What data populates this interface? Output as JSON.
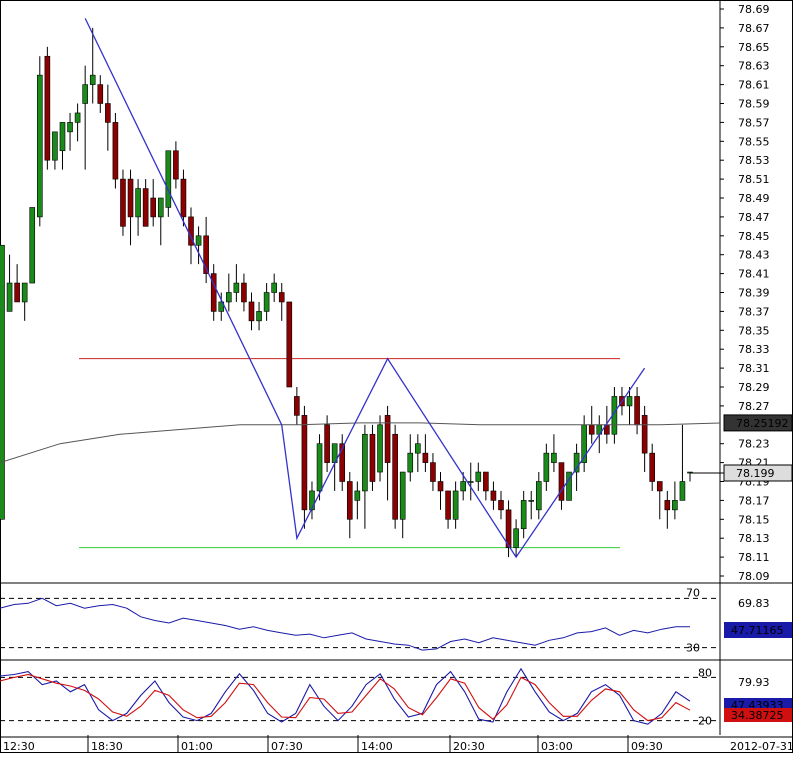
{
  "chart_data": [
    {
      "type": "candlestick",
      "panel": "price",
      "y_ticks": [
        "78.69",
        "78.67",
        "78.65",
        "78.63",
        "78.61",
        "78.59",
        "78.57",
        "78.55",
        "78.53",
        "78.51",
        "78.49",
        "78.47",
        "78.45",
        "78.43",
        "78.41",
        "78.39",
        "78.37",
        "78.35",
        "78.33",
        "78.31",
        "78.29",
        "78.27",
        "78.23",
        "78.21",
        "78.19",
        "78.17",
        "78.15",
        "78.13",
        "78.11",
        "78.09"
      ],
      "ylim": [
        78.08,
        78.7
      ],
      "up_color": "#1a8a1a",
      "down_color": "#8b0000",
      "candles": [
        {
          "o": 78.15,
          "h": 78.44,
          "l": 78.15,
          "c": 78.44
        },
        {
          "o": 78.37,
          "h": 78.43,
          "l": 78.37,
          "c": 78.4
        },
        {
          "o": 78.4,
          "h": 78.42,
          "l": 78.38,
          "c": 78.38
        },
        {
          "o": 78.38,
          "h": 78.4,
          "l": 78.36,
          "c": 78.4
        },
        {
          "o": 78.4,
          "h": 78.48,
          "l": 78.4,
          "c": 78.48
        },
        {
          "o": 78.47,
          "h": 78.64,
          "l": 78.46,
          "c": 78.62
        },
        {
          "o": 78.64,
          "h": 78.65,
          "l": 78.52,
          "c": 78.53
        },
        {
          "o": 78.53,
          "h": 78.56,
          "l": 78.52,
          "c": 78.56
        },
        {
          "o": 78.54,
          "h": 78.57,
          "l": 78.52,
          "c": 78.57
        },
        {
          "o": 78.56,
          "h": 78.58,
          "l": 78.54,
          "c": 78.57
        },
        {
          "o": 78.57,
          "h": 78.59,
          "l": 78.55,
          "c": 78.58
        },
        {
          "o": 78.59,
          "h": 78.63,
          "l": 78.52,
          "c": 78.61
        },
        {
          "o": 78.61,
          "h": 78.67,
          "l": 78.59,
          "c": 78.62
        },
        {
          "o": 78.61,
          "h": 78.62,
          "l": 78.58,
          "c": 78.59
        },
        {
          "o": 78.59,
          "h": 78.61,
          "l": 78.54,
          "c": 78.57
        },
        {
          "o": 78.57,
          "h": 78.58,
          "l": 78.5,
          "c": 78.51
        },
        {
          "o": 78.51,
          "h": 78.52,
          "l": 78.45,
          "c": 78.46
        },
        {
          "o": 78.51,
          "h": 78.52,
          "l": 78.44,
          "c": 78.47
        },
        {
          "o": 78.47,
          "h": 78.51,
          "l": 78.45,
          "c": 78.5
        },
        {
          "o": 78.5,
          "h": 78.51,
          "l": 78.46,
          "c": 78.46
        },
        {
          "o": 78.49,
          "h": 78.51,
          "l": 78.46,
          "c": 78.47
        },
        {
          "o": 78.47,
          "h": 78.49,
          "l": 78.44,
          "c": 78.49
        },
        {
          "o": 78.48,
          "h": 78.54,
          "l": 78.47,
          "c": 78.54
        },
        {
          "o": 78.54,
          "h": 78.55,
          "l": 78.5,
          "c": 78.51
        },
        {
          "o": 78.51,
          "h": 78.52,
          "l": 78.46,
          "c": 78.47
        },
        {
          "o": 78.47,
          "h": 78.48,
          "l": 78.42,
          "c": 78.44
        },
        {
          "o": 78.44,
          "h": 78.46,
          "l": 78.42,
          "c": 78.45
        },
        {
          "o": 78.45,
          "h": 78.47,
          "l": 78.4,
          "c": 78.41
        },
        {
          "o": 78.41,
          "h": 78.42,
          "l": 78.36,
          "c": 78.37
        },
        {
          "o": 78.37,
          "h": 78.39,
          "l": 78.36,
          "c": 78.38
        },
        {
          "o": 78.38,
          "h": 78.41,
          "l": 78.37,
          "c": 78.39
        },
        {
          "o": 78.39,
          "h": 78.42,
          "l": 78.38,
          "c": 78.4
        },
        {
          "o": 78.4,
          "h": 78.41,
          "l": 78.37,
          "c": 78.38
        },
        {
          "o": 78.38,
          "h": 78.39,
          "l": 78.35,
          "c": 78.36
        },
        {
          "o": 78.36,
          "h": 78.38,
          "l": 78.35,
          "c": 78.37
        },
        {
          "o": 78.37,
          "h": 78.4,
          "l": 78.36,
          "c": 78.39
        },
        {
          "o": 78.39,
          "h": 78.41,
          "l": 78.38,
          "c": 78.4
        },
        {
          "o": 78.39,
          "h": 78.4,
          "l": 78.36,
          "c": 78.38
        },
        {
          "o": 78.38,
          "h": 78.38,
          "l": 78.29,
          "c": 78.29
        },
        {
          "o": 78.28,
          "h": 78.29,
          "l": 78.25,
          "c": 78.26
        },
        {
          "o": 78.26,
          "h": 78.27,
          "l": 78.14,
          "c": 78.16
        },
        {
          "o": 78.16,
          "h": 78.19,
          "l": 78.15,
          "c": 78.18
        },
        {
          "o": 78.18,
          "h": 78.24,
          "l": 78.17,
          "c": 78.23
        },
        {
          "o": 78.25,
          "h": 78.26,
          "l": 78.2,
          "c": 78.21
        },
        {
          "o": 78.21,
          "h": 78.23,
          "l": 78.18,
          "c": 78.23
        },
        {
          "o": 78.23,
          "h": 78.24,
          "l": 78.18,
          "c": 78.19
        },
        {
          "o": 78.19,
          "h": 78.2,
          "l": 78.13,
          "c": 78.15
        },
        {
          "o": 78.17,
          "h": 78.19,
          "l": 78.15,
          "c": 78.18
        },
        {
          "o": 78.18,
          "h": 78.25,
          "l": 78.14,
          "c": 78.24
        },
        {
          "o": 78.24,
          "h": 78.25,
          "l": 78.18,
          "c": 78.19
        },
        {
          "o": 78.2,
          "h": 78.26,
          "l": 78.19,
          "c": 78.25
        },
        {
          "o": 78.26,
          "h": 78.27,
          "l": 78.17,
          "c": 78.21
        },
        {
          "o": 78.24,
          "h": 78.25,
          "l": 78.14,
          "c": 78.15
        },
        {
          "o": 78.15,
          "h": 78.2,
          "l": 78.13,
          "c": 78.2
        },
        {
          "o": 78.2,
          "h": 78.24,
          "l": 78.19,
          "c": 78.22
        },
        {
          "o": 78.22,
          "h": 78.24,
          "l": 78.2,
          "c": 78.23
        },
        {
          "o": 78.22,
          "h": 78.24,
          "l": 78.2,
          "c": 78.21
        },
        {
          "o": 78.21,
          "h": 78.22,
          "l": 78.18,
          "c": 78.19
        },
        {
          "o": 78.19,
          "h": 78.2,
          "l": 78.16,
          "c": 78.18
        },
        {
          "o": 78.18,
          "h": 78.18,
          "l": 78.14,
          "c": 78.15
        },
        {
          "o": 78.15,
          "h": 78.19,
          "l": 78.14,
          "c": 78.18
        },
        {
          "o": 78.18,
          "h": 78.2,
          "l": 78.17,
          "c": 78.19
        },
        {
          "o": 78.19,
          "h": 78.21,
          "l": 78.17,
          "c": 78.19
        },
        {
          "o": 78.19,
          "h": 78.21,
          "l": 78.18,
          "c": 78.2
        },
        {
          "o": 78.2,
          "h": 78.2,
          "l": 78.17,
          "c": 78.18
        },
        {
          "o": 78.18,
          "h": 78.19,
          "l": 78.16,
          "c": 78.17
        },
        {
          "o": 78.17,
          "h": 78.18,
          "l": 78.15,
          "c": 78.16
        },
        {
          "o": 78.16,
          "h": 78.17,
          "l": 78.11,
          "c": 78.12
        },
        {
          "o": 78.12,
          "h": 78.15,
          "l": 78.11,
          "c": 78.14
        },
        {
          "o": 78.14,
          "h": 78.18,
          "l": 78.13,
          "c": 78.17
        },
        {
          "o": 78.17,
          "h": 78.18,
          "l": 78.15,
          "c": 78.17
        },
        {
          "o": 78.16,
          "h": 78.2,
          "l": 78.15,
          "c": 78.19
        },
        {
          "o": 78.19,
          "h": 78.23,
          "l": 78.18,
          "c": 78.22
        },
        {
          "o": 78.21,
          "h": 78.24,
          "l": 78.2,
          "c": 78.22
        },
        {
          "o": 78.21,
          "h": 78.21,
          "l": 78.16,
          "c": 78.17
        },
        {
          "o": 78.17,
          "h": 78.2,
          "l": 78.17,
          "c": 78.2
        },
        {
          "o": 78.2,
          "h": 78.23,
          "l": 78.18,
          "c": 78.22
        },
        {
          "o": 78.21,
          "h": 78.26,
          "l": 78.2,
          "c": 78.25
        },
        {
          "o": 78.25,
          "h": 78.27,
          "l": 78.23,
          "c": 78.24
        },
        {
          "o": 78.24,
          "h": 78.26,
          "l": 78.22,
          "c": 78.25
        },
        {
          "o": 78.25,
          "h": 78.27,
          "l": 78.23,
          "c": 78.24
        },
        {
          "o": 78.24,
          "h": 78.29,
          "l": 78.23,
          "c": 78.28
        },
        {
          "o": 78.28,
          "h": 78.29,
          "l": 78.26,
          "c": 78.27
        },
        {
          "o": 78.27,
          "h": 78.29,
          "l": 78.25,
          "c": 78.28
        },
        {
          "o": 78.28,
          "h": 78.29,
          "l": 78.24,
          "c": 78.25
        },
        {
          "o": 78.26,
          "h": 78.27,
          "l": 78.2,
          "c": 78.22
        },
        {
          "o": 78.22,
          "h": 78.23,
          "l": 78.18,
          "c": 78.19
        },
        {
          "o": 78.19,
          "h": 78.19,
          "l": 78.15,
          "c": 78.18
        },
        {
          "o": 78.17,
          "h": 78.18,
          "l": 78.14,
          "c": 78.16
        },
        {
          "o": 78.16,
          "h": 78.19,
          "l": 78.15,
          "c": 78.17
        },
        {
          "o": 78.17,
          "h": 78.25,
          "l": 78.17,
          "c": 78.19
        },
        {
          "o": 78.2,
          "h": 78.2,
          "l": 78.19,
          "c": 78.2
        }
      ],
      "ma_line": [
        78.21,
        78.23,
        78.24,
        78.245,
        78.25,
        78.25,
        78.252,
        78.252,
        78.25,
        78.25,
        78.25,
        78.25,
        78.2519
      ],
      "levels": {
        "resistance": 78.32,
        "support": 78.12,
        "resistance_color": "#cc2222",
        "support_color": "#33cc33"
      },
      "zigzag": [
        [
          12,
          78.68
        ],
        [
          38,
          78.25
        ],
        [
          40,
          78.13
        ],
        [
          52,
          78.32
        ],
        [
          69,
          78.11
        ],
        [
          86,
          78.31
        ]
      ],
      "zigzag_color": "#3333cc",
      "price_labels": [
        {
          "value": "78.25192",
          "at": 78.252,
          "style": "dark"
        },
        {
          "value": "78.199",
          "at": 78.199,
          "style": "light"
        }
      ]
    },
    {
      "type": "line",
      "panel": "indicator-1",
      "title": "",
      "levels": [
        "70",
        "30"
      ],
      "scale_label": "69.83",
      "ylim": [
        20,
        80
      ],
      "series": [
        {
          "color": "#1a1aa8",
          "values": [
            62,
            65,
            66,
            70,
            64,
            66,
            62,
            64,
            65,
            62,
            55,
            52,
            50,
            54,
            52,
            50,
            48,
            45,
            47,
            44,
            42,
            40,
            41,
            38,
            40,
            42,
            37,
            35,
            33,
            32,
            28,
            29,
            35,
            37,
            34,
            38,
            36,
            34,
            32,
            36,
            38,
            42,
            43,
            46,
            40,
            44,
            42,
            45,
            47,
            47
          ]
        }
      ],
      "current_label": "47.71165"
    },
    {
      "type": "line",
      "panel": "indicator-2",
      "levels": [
        "80",
        "20"
      ],
      "scale_label": "79.93",
      "ylim": [
        0,
        100
      ],
      "series": [
        {
          "color": "#1a1aa8",
          "values": [
            82,
            84,
            88,
            70,
            75,
            60,
            70,
            35,
            20,
            30,
            55,
            75,
            45,
            25,
            20,
            30,
            60,
            85,
            62,
            30,
            18,
            30,
            70,
            40,
            20,
            40,
            70,
            85,
            50,
            25,
            30,
            70,
            88,
            60,
            22,
            18,
            60,
            92,
            60,
            32,
            20,
            30,
            60,
            70,
            55,
            20,
            15,
            30,
            60,
            47
          ],
          "label_visible": "47.43933"
        },
        {
          "color": "#d01010",
          "values": [
            75,
            80,
            84,
            78,
            72,
            68,
            62,
            50,
            32,
            26,
            40,
            62,
            55,
            35,
            24,
            26,
            45,
            72,
            70,
            45,
            25,
            24,
            52,
            50,
            30,
            32,
            55,
            78,
            64,
            38,
            28,
            52,
            78,
            72,
            38,
            22,
            42,
            80,
            70,
            45,
            26,
            26,
            48,
            64,
            60,
            35,
            20,
            24,
            45,
            34.38725
          ],
          "label_visible": "34.38725"
        }
      ]
    }
  ],
  "x_axis": {
    "labels": [
      "12:30",
      "18:30",
      "01:00",
      "07:30",
      "14:00",
      "20:30",
      "03:00",
      "09:30"
    ],
    "date_label": "2012-07-31"
  },
  "colors": {
    "ma_line": "#555555",
    "gridline": "#000000",
    "panel_border": "#000000",
    "label_dark_bg": "#333333",
    "label_light_bg": "#dddddd",
    "rsi_label_bg": "#1a1aa8",
    "stoch_label_bg": "#d01010"
  }
}
